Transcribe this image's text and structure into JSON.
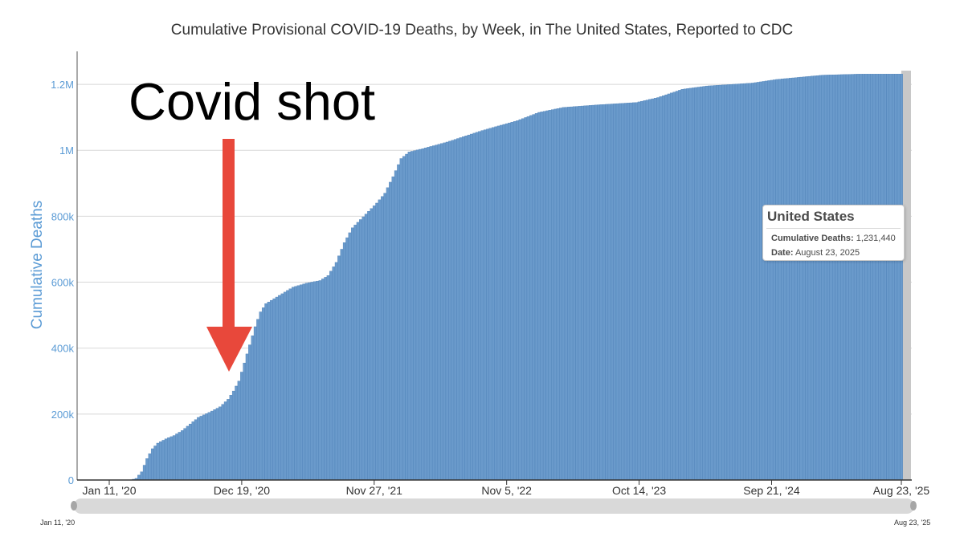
{
  "chart_data": {
    "type": "bar",
    "title": "Cumulative Provisional COVID-19 Deaths, by Week, in The United States, Reported to CDC",
    "ylabel": "Cumulative Deaths",
    "xlabel": "",
    "ylim": [
      0,
      1300000
    ],
    "yticks": [
      0,
      200000,
      400000,
      600000,
      800000,
      1000000,
      1200000
    ],
    "ytick_labels": [
      "0",
      "200k",
      "400k",
      "600k",
      "800k",
      "1M",
      "1.2M"
    ],
    "xticks": [
      {
        "date": "2020-01-11",
        "label": "Jan 11, '20"
      },
      {
        "date": "2020-12-19",
        "label": "Dec 19, '20"
      },
      {
        "date": "2021-11-27",
        "label": "Nov 27, '21"
      },
      {
        "date": "2022-11-05",
        "label": "Nov 5, '22"
      },
      {
        "date": "2023-10-14",
        "label": "Oct 14, '23"
      },
      {
        "date": "2024-09-21",
        "label": "Sep 21, '24"
      },
      {
        "date": "2025-08-23",
        "label": "Aug 23, '25"
      }
    ],
    "first_week": "2020-01-11",
    "last_week": "2025-08-23",
    "series": [
      {
        "color": "#6a9acb",
        "points": [
          [
            "2020-01-11",
            0
          ],
          [
            "2020-03-07",
            0
          ],
          [
            "2020-03-21",
            5000
          ],
          [
            "2020-04-04",
            25000
          ],
          [
            "2020-04-18",
            65000
          ],
          [
            "2020-05-02",
            95000
          ],
          [
            "2020-05-16",
            112000
          ],
          [
            "2020-06-06",
            125000
          ],
          [
            "2020-06-27",
            135000
          ],
          [
            "2020-07-18",
            150000
          ],
          [
            "2020-08-08",
            170000
          ],
          [
            "2020-08-29",
            190000
          ],
          [
            "2020-09-26",
            205000
          ],
          [
            "2020-10-24",
            222000
          ],
          [
            "2020-11-14",
            245000
          ],
          [
            "2020-11-28",
            270000
          ],
          [
            "2020-12-12",
            300000
          ],
          [
            "2020-12-26",
            355000
          ],
          [
            "2021-01-09",
            410000
          ],
          [
            "2021-01-23",
            465000
          ],
          [
            "2021-02-06",
            510000
          ],
          [
            "2021-02-20",
            535000
          ],
          [
            "2021-03-13",
            550000
          ],
          [
            "2021-04-03",
            565000
          ],
          [
            "2021-05-01",
            585000
          ],
          [
            "2021-06-05",
            597000
          ],
          [
            "2021-07-10",
            605000
          ],
          [
            "2021-07-31",
            620000
          ],
          [
            "2021-08-21",
            660000
          ],
          [
            "2021-09-11",
            720000
          ],
          [
            "2021-10-02",
            765000
          ],
          [
            "2021-10-23",
            790000
          ],
          [
            "2021-11-13",
            815000
          ],
          [
            "2021-12-04",
            840000
          ],
          [
            "2021-12-25",
            870000
          ],
          [
            "2022-01-15",
            920000
          ],
          [
            "2022-02-05",
            975000
          ],
          [
            "2022-02-26",
            995000
          ],
          [
            "2022-04-02",
            1005000
          ],
          [
            "2022-06-04",
            1025000
          ],
          [
            "2022-09-03",
            1060000
          ],
          [
            "2022-12-03",
            1090000
          ],
          [
            "2023-01-28",
            1115000
          ],
          [
            "2023-04-01",
            1130000
          ],
          [
            "2023-07-01",
            1138000
          ],
          [
            "2023-10-07",
            1145000
          ],
          [
            "2023-12-02",
            1160000
          ],
          [
            "2024-02-03",
            1185000
          ],
          [
            "2024-04-06",
            1195000
          ],
          [
            "2024-08-03",
            1204000
          ],
          [
            "2024-10-05",
            1215000
          ],
          [
            "2024-12-07",
            1222000
          ],
          [
            "2025-02-01",
            1228000
          ],
          [
            "2025-05-03",
            1231000
          ],
          [
            "2025-08-23",
            1231440
          ]
        ]
      }
    ],
    "tooltip": {
      "title": "United States",
      "deaths_label": "Cumulative Deaths:",
      "deaths_value": "1,231,440",
      "date_label": "Date:",
      "date_value": "August 23, 2025"
    },
    "annotation": {
      "text": "Covid shot",
      "arrow_color": "#e8483b",
      "points_to_date": "2020-12-26"
    },
    "navigator": {
      "start_label": "Jan 11, '20",
      "end_label": "Aug 23, '25"
    },
    "colors": {
      "bar": "#6a9acb",
      "bar_stroke": "#4a7eb5",
      "axis_label": "#5b9bd5",
      "grid": "#d8d8d8",
      "navigator": "#d9d9d9",
      "highlight": "#c8c8c8"
    },
    "grid": true,
    "legend": "none"
  }
}
